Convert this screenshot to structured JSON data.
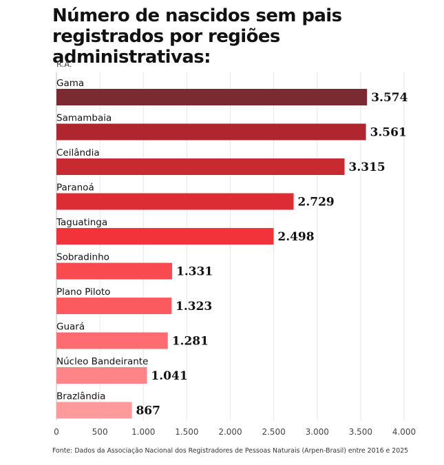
{
  "title": "Número de nascidos sem pais registrados por regiões administrativas:",
  "source": "Fonte: Dados da Associação Nacional dos Registradores de Pessoas Naturais (Arpen-Brasil) entre 2016 e 2025",
  "chart_data": {
    "type": "bar",
    "orientation": "horizontal",
    "title": "Número de nascidos sem pais registrados por regiões administrativas:",
    "category_axis_label": "R.A.",
    "categories": [
      "Gama",
      "Samambaia",
      "Ceilândia",
      "Paranoá",
      "Taguatinga",
      "Sobradinho",
      "Plano Piloto",
      "Guará",
      "Núcleo Bandeirante",
      "Brazlândia"
    ],
    "values": [
      3574,
      3561,
      3315,
      2729,
      2498,
      1331,
      1323,
      1281,
      1041,
      867
    ],
    "value_labels": [
      "3.574",
      "3.561",
      "3.315",
      "2.729",
      "2.498",
      "1.331",
      "1.323",
      "1.281",
      "1.041",
      "867"
    ],
    "bar_colors": [
      "#7a2a30",
      "#b0262f",
      "#c82a32",
      "#dc2d35",
      "#f2333a",
      "#f84a4f",
      "#fb5a5e",
      "#fc6c70",
      "#fd8588",
      "#fe9a9c"
    ],
    "xlim": [
      0,
      4000
    ],
    "xticks": [
      0,
      500,
      1000,
      1500,
      2000,
      2500,
      3000,
      3500,
      4000
    ],
    "xtick_labels": [
      "0",
      "500",
      "1.000",
      "1.500",
      "2.000",
      "2.500",
      "3.000",
      "3.500",
      "4.000"
    ],
    "grid": true
  }
}
